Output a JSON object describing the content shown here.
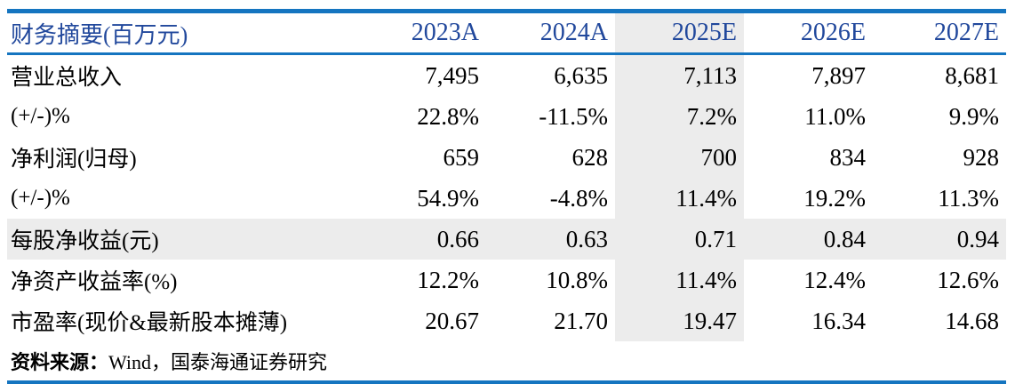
{
  "table": {
    "header": {
      "label": "财务摘要(百万元)",
      "columns": [
        "2023A",
        "2024A",
        "2025E",
        "2026E",
        "2027E"
      ],
      "highlighted_column": "2025E"
    },
    "rows": [
      {
        "label": "营业总收入",
        "values": [
          "7,495",
          "6,635",
          "7,113",
          "7,897",
          "8,681"
        ],
        "highlight": false
      },
      {
        "label": "(+/-)%",
        "values": [
          "22.8%",
          "-11.5%",
          "7.2%",
          "11.0%",
          "9.9%"
        ],
        "highlight": false
      },
      {
        "label": "净利润(归母)",
        "values": [
          "659",
          "628",
          "700",
          "834",
          "928"
        ],
        "highlight": false
      },
      {
        "label": "(+/-)%",
        "values": [
          "54.9%",
          "-4.8%",
          "11.4%",
          "19.2%",
          "11.3%"
        ],
        "highlight": false
      },
      {
        "label": "每股净收益(元)",
        "values": [
          "0.66",
          "0.63",
          "0.71",
          "0.84",
          "0.94"
        ],
        "highlight": true
      },
      {
        "label": "净资产收益率(%)",
        "values": [
          "12.2%",
          "10.8%",
          "11.4%",
          "12.4%",
          "12.6%"
        ],
        "highlight": false
      },
      {
        "label": "市盈率(现价&最新股本摊薄)",
        "values": [
          "20.67",
          "21.70",
          "19.47",
          "16.34",
          "14.68"
        ],
        "highlight": false
      }
    ],
    "source": {
      "label": "资料来源：",
      "text": "Wind，国泰海通证券研究"
    }
  },
  "colors": {
    "rule_blue": "#1575c0",
    "header_text_blue": "#21489c",
    "highlight_gray": "#ececec",
    "body_text": "#000000"
  }
}
